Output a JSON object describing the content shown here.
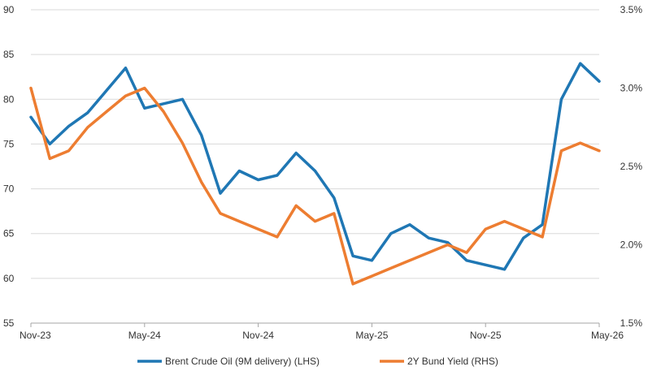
{
  "chart_data": {
    "type": "line",
    "title": "",
    "x_ticks": [
      "Nov-23",
      "May-24",
      "Nov-24",
      "May-25",
      "Nov-25",
      "May-26"
    ],
    "x_range": [
      "2023-11",
      "2026-05"
    ],
    "y_left": {
      "ticks": [
        "55",
        "60",
        "65",
        "70",
        "75",
        "80",
        "85",
        "90"
      ],
      "range": [
        55,
        90
      ]
    },
    "y_right": {
      "ticks": [
        "1.5%",
        "2.0%",
        "2.5%",
        "3.0%",
        "3.5%"
      ],
      "range": [
        1.5,
        3.5
      ]
    },
    "grid": "horizontal",
    "legend_position": "bottom",
    "colors": {
      "brent": "#1f77b4",
      "bund": "#ed7d31"
    },
    "series": [
      {
        "name": "Brent Crude Oil (9M delivery) (LHS)",
        "axis": "left",
        "points": [
          [
            "2023-11",
            78.0
          ],
          [
            "2023-12",
            75.0
          ],
          [
            "2024-01",
            77.0
          ],
          [
            "2024-02",
            78.5
          ],
          [
            "2024-03",
            81.0
          ],
          [
            "2024-04",
            83.5
          ],
          [
            "2024-05",
            79.0
          ],
          [
            "2024-06",
            79.5
          ],
          [
            "2024-07",
            80.0
          ],
          [
            "2024-08",
            76.0
          ],
          [
            "2024-09",
            69.5
          ],
          [
            "2024-10",
            72.0
          ],
          [
            "2024-11",
            71.0
          ],
          [
            "2024-12",
            71.5
          ],
          [
            "2025-01",
            74.0
          ],
          [
            "2025-02",
            72.0
          ],
          [
            "2025-03",
            69.0
          ],
          [
            "2025-04",
            62.5
          ],
          [
            "2025-05",
            62.0
          ],
          [
            "2025-06",
            65.0
          ],
          [
            "2025-07",
            66.0
          ],
          [
            "2025-08",
            64.5
          ],
          [
            "2025-09",
            64.0
          ],
          [
            "2025-10",
            62.0
          ],
          [
            "2025-11",
            61.5
          ],
          [
            "2025-12",
            61.0
          ],
          [
            "2026-01",
            64.5
          ],
          [
            "2026-02",
            66.0
          ],
          [
            "2026-03",
            80.0
          ],
          [
            "2026-04",
            84.0
          ],
          [
            "2026-05",
            82.0
          ]
        ]
      },
      {
        "name": "2Y Bund Yield (RHS)",
        "axis": "right",
        "points": [
          [
            "2023-11",
            3.0
          ],
          [
            "2023-12",
            2.55
          ],
          [
            "2024-01",
            2.6
          ],
          [
            "2024-02",
            2.75
          ],
          [
            "2024-03",
            2.85
          ],
          [
            "2024-04",
            2.95
          ],
          [
            "2024-05",
            3.0
          ],
          [
            "2024-06",
            2.85
          ],
          [
            "2024-07",
            2.65
          ],
          [
            "2024-08",
            2.4
          ],
          [
            "2024-09",
            2.2
          ],
          [
            "2024-10",
            2.15
          ],
          [
            "2024-11",
            2.1
          ],
          [
            "2024-12",
            2.05
          ],
          [
            "2025-01",
            2.25
          ],
          [
            "2025-02",
            2.15
          ],
          [
            "2025-03",
            2.2
          ],
          [
            "2025-04",
            1.75
          ],
          [
            "2025-05",
            1.8
          ],
          [
            "2025-06",
            1.85
          ],
          [
            "2025-07",
            1.9
          ],
          [
            "2025-08",
            1.95
          ],
          [
            "2025-09",
            2.0
          ],
          [
            "2025-10",
            1.95
          ],
          [
            "2025-11",
            2.1
          ],
          [
            "2025-12",
            2.15
          ],
          [
            "2026-01",
            2.1
          ],
          [
            "2026-02",
            2.05
          ],
          [
            "2026-03",
            2.6
          ],
          [
            "2026-04",
            2.65
          ],
          [
            "2026-05",
            2.6
          ]
        ]
      }
    ]
  }
}
